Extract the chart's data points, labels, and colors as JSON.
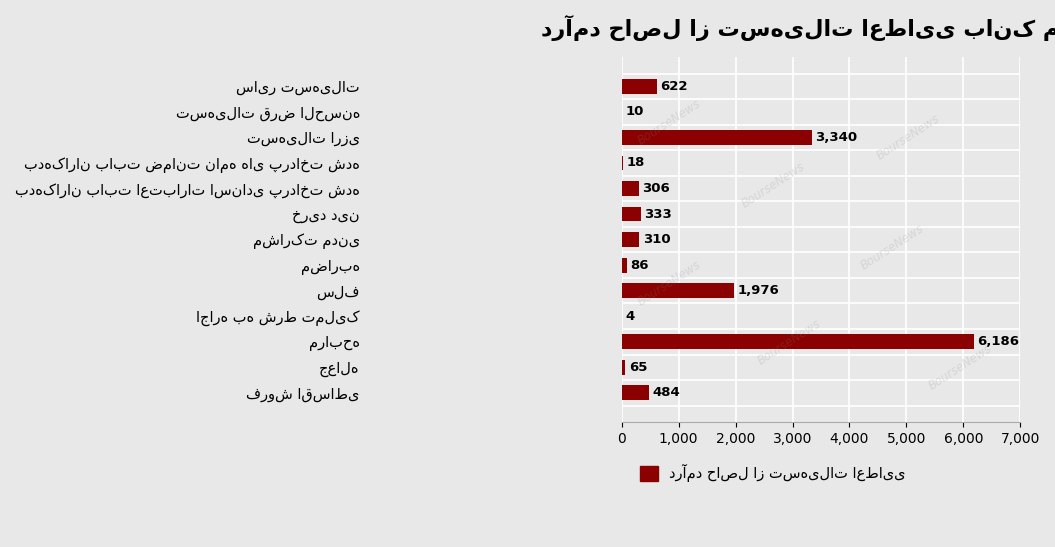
{
  "title": "درآمد حاصل از تسهیلات اعطایی بانک ملت",
  "legend_label": "درآمد حاصل از تسهیلات اعطایی",
  "categories_display": [
    "سایر تسهیلات",
    "تسهیلات قرض الحسنه",
    "تسهیلات ارزی",
    "بدهکاران بابت ضمانت نامه های پرداخت شده",
    "بدهکاران بابت اعتبارات اسنادی پرداخت شده",
    "خرید دین",
    "مشارکت مدنی",
    "مضاربه",
    "سلف",
    "اجاره به شرط تملیک",
    "مرابحه",
    "جعاله",
    "فروش اقساطی"
  ],
  "values": [
    622,
    10,
    3340,
    18,
    306,
    333,
    310,
    86,
    1976,
    4,
    6186,
    65,
    484
  ],
  "value_labels": [
    "622",
    "10",
    "3,340",
    "18",
    "306",
    "333",
    "310",
    "86",
    "1,976",
    "4",
    "6,186",
    "65",
    "484"
  ],
  "bar_color": "#8B0000",
  "bg_color": "#E8E8E8",
  "xlim": [
    0,
    7000
  ],
  "xticks": [
    0,
    1000,
    2000,
    3000,
    4000,
    5000,
    6000,
    7000
  ],
  "xtick_labels": [
    "0",
    "1,000",
    "2,000",
    "3,000",
    "4,000",
    "5,000",
    "6,000",
    "7,000"
  ],
  "watermark": "BourseNews"
}
